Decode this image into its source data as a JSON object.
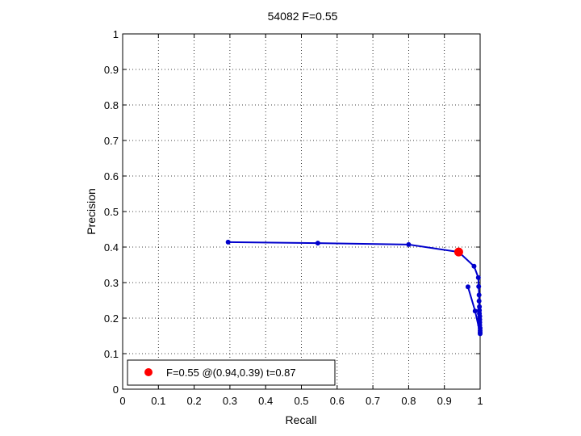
{
  "chart_data": {
    "type": "line",
    "title": "54082 F=0.55",
    "xlabel": "Recall",
    "ylabel": "Precision",
    "xlim": [
      0,
      1
    ],
    "ylim": [
      0,
      1
    ],
    "grid": true,
    "x_ticks": [
      "0",
      "0.1",
      "0.2",
      "0.3",
      "0.4",
      "0.5",
      "0.6",
      "0.7",
      "0.8",
      "0.9",
      "1"
    ],
    "y_ticks": [
      "0",
      "0.1",
      "0.2",
      "0.3",
      "0.4",
      "0.5",
      "0.6",
      "0.7",
      "0.8",
      "0.9",
      "1"
    ],
    "series": [
      {
        "color": "#0000cc",
        "points": [
          [
            0.295,
            0.414
          ],
          [
            0.546,
            0.411
          ],
          [
            0.8,
            0.407
          ],
          [
            0.94,
            0.386
          ],
          [
            0.983,
            0.346
          ],
          [
            0.995,
            0.314
          ],
          [
            0.996,
            0.289
          ],
          [
            0.997,
            0.265
          ],
          [
            0.997,
            0.248
          ],
          [
            0.998,
            0.232
          ],
          [
            0.998,
            0.222
          ],
          [
            0.998,
            0.213
          ],
          [
            0.999,
            0.205
          ],
          [
            0.999,
            0.196
          ],
          [
            0.999,
            0.188
          ],
          [
            0.999,
            0.18
          ],
          [
            1.0,
            0.172
          ],
          [
            1.0,
            0.165
          ],
          [
            1.0,
            0.16
          ],
          [
            1.0,
            0.156
          ],
          [
            0.986,
            0.22
          ],
          [
            0.966,
            0.288
          ]
        ]
      }
    ],
    "highlight": {
      "x": 0.94,
      "y": 0.386,
      "color": "#ff0000"
    },
    "legend": {
      "position": "bottom-left",
      "label": "F=0.55 @(0.94,0.39) t=0.87"
    }
  }
}
